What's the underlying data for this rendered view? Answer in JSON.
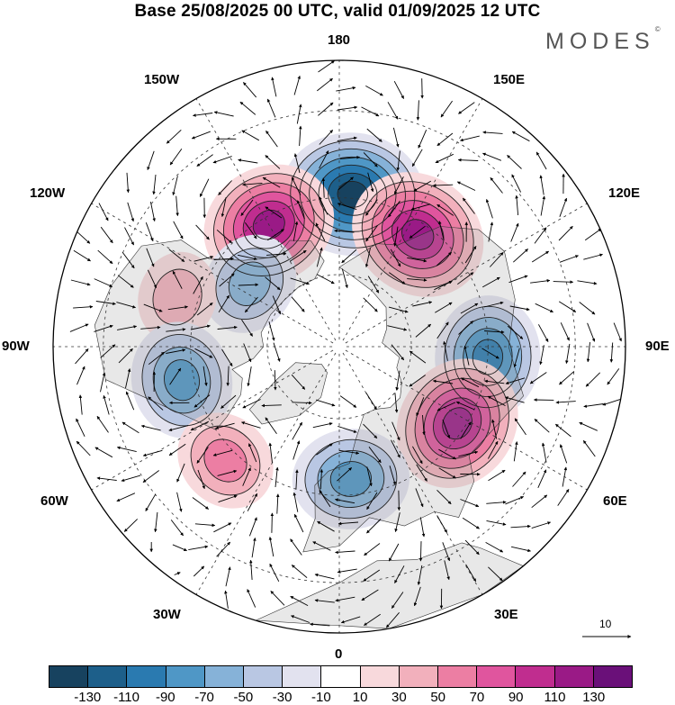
{
  "title": "Base 25/08/2025 00 UTC, valid 01/09/2025 12 UTC",
  "logo": {
    "text": "MODES",
    "mark": "©"
  },
  "longitude_labels": {
    "lon_180": "180",
    "lon_150W": "150W",
    "lon_150E": "150E",
    "lon_120W": "120W",
    "lon_120E": "120E",
    "lon_90W": "90W",
    "lon_90E": "90E",
    "lon_60W": "60W",
    "lon_60E": "60E",
    "lon_30W": "30W",
    "lon_30E": "30E",
    "lon_0": "0"
  },
  "reference_vector": {
    "label": "10"
  },
  "colorbar": {
    "colors": [
      "#17425f",
      "#1d5f8a",
      "#2a7ab0",
      "#4f97c6",
      "#86b2d8",
      "#b9c7e3",
      "#e2e2ef",
      "#ffffff",
      "#f8d9dc",
      "#f2b0bc",
      "#ec7ea3",
      "#e0559e",
      "#c02d8f",
      "#9a1a86",
      "#6a1079"
    ],
    "tick_labels": [
      "-130",
      "-110",
      "-90",
      "-70",
      "-50",
      "-30",
      "-10",
      "10",
      "30",
      "50",
      "70",
      "90",
      "110",
      "130"
    ]
  },
  "chart_data": {
    "type": "polar-stereographic-anomaly-map",
    "projection": "north-polar-stereographic",
    "field": "anomaly with wind vectors",
    "units_vector_reference": 10,
    "levels": [
      -130,
      -110,
      -90,
      -70,
      -50,
      -30,
      -10,
      10,
      30,
      50,
      70,
      90,
      110,
      130
    ],
    "centers": [
      {
        "id": "neg-180",
        "lon": 175,
        "lat": 49,
        "value": -130,
        "sign": "negative"
      },
      {
        "id": "pos-150W",
        "lon": -150,
        "lat": 52,
        "value": 115,
        "sign": "positive"
      },
      {
        "id": "pos-145E",
        "lon": 145,
        "lat": 53,
        "value": 120,
        "sign": "positive"
      },
      {
        "id": "neg-125W",
        "lon": -125,
        "lat": 60,
        "value": -60,
        "sign": "negative"
      },
      {
        "id": "pos-105W",
        "lon": -107,
        "lat": 45,
        "value": 40,
        "sign": "positive"
      },
      {
        "id": "neg-85E",
        "lon": 86,
        "lat": 50,
        "value": -95,
        "sign": "negative"
      },
      {
        "id": "neg-75W",
        "lon": -78,
        "lat": 47,
        "value": -85,
        "sign": "negative"
      },
      {
        "id": "pos-55E",
        "lon": 57,
        "lat": 52,
        "value": 115,
        "sign": "positive"
      },
      {
        "id": "pos-45W",
        "lon": -45,
        "lat": 47,
        "value": 60,
        "sign": "positive"
      },
      {
        "id": "neg-5E",
        "lon": 5,
        "lat": 54,
        "value": -85,
        "sign": "negative"
      }
    ]
  }
}
